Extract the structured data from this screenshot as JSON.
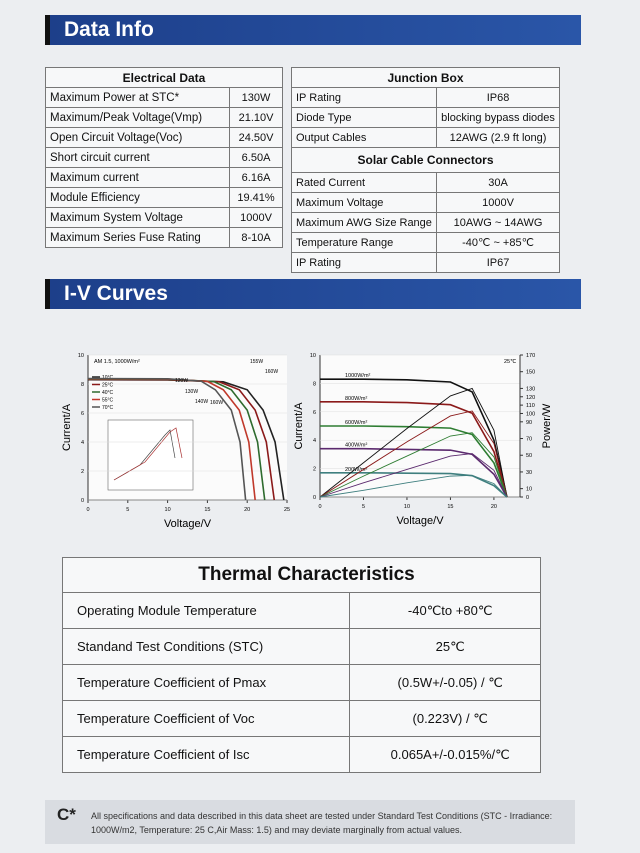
{
  "data_info": {
    "title": "Data Info",
    "electrical": {
      "title": "Electrical Data",
      "rows": [
        [
          "Maximum Power at STC*",
          "130W"
        ],
        [
          "Maximum/Peak Voltage(Vmp)",
          "21.10V"
        ],
        [
          "Open Circuit Voltage(Voc)",
          "24.50V"
        ],
        [
          "Short circuit current",
          "6.50A"
        ],
        [
          "Maximum current",
          "6.16A"
        ],
        [
          "Module Efficiency",
          "19.41%"
        ],
        [
          "Maximum System Voltage",
          "1000V"
        ],
        [
          "Maximum Series Fuse Rating",
          "8-10A"
        ]
      ]
    },
    "junction_box": {
      "title": "Junction Box",
      "rows": [
        [
          "IP Rating",
          "IP68"
        ],
        [
          "Diode Type",
          "blocking bypass diodes"
        ],
        [
          "Output Cables",
          "12AWG  (2.9 ft long)"
        ]
      ]
    },
    "cable_connectors": {
      "title": "Solar Cable Connectors",
      "rows": [
        [
          "Rated Current",
          "30A"
        ],
        [
          "Maximum Voltage",
          "1000V"
        ],
        [
          "Maximum AWG Size Range",
          "10AWG ~ 14AWG"
        ],
        [
          "Temperature Range",
          "-40℃ ~ +85℃"
        ],
        [
          "IP Rating",
          "IP67"
        ]
      ]
    }
  },
  "iv_curves": {
    "title": "I-V Curves",
    "charts": [
      {
        "type": "line",
        "xlabel": "Voltage/V",
        "ylabel": "Current/A",
        "annotation": "AM 1.5, 1000W/m²",
        "power_labels": [
          "155W",
          "160W",
          "120W",
          "130W",
          "140W",
          "160W"
        ],
        "xlim": [
          0,
          25
        ],
        "xticks": [
          0,
          5,
          10,
          15,
          20,
          25
        ],
        "ylim": [
          0,
          10
        ],
        "yticks": [
          0,
          2,
          4,
          6,
          8,
          10
        ],
        "series": [
          {
            "name": "10°C",
            "color": "#222222",
            "x": [
              0,
              10,
              17,
              20,
              22,
              23.5,
              24.6
            ],
            "values": [
              8.3,
              8.28,
              8.15,
              7.6,
              6.2,
              4,
              0
            ]
          },
          {
            "name": "25°C",
            "color": "#8b1a1a",
            "x": [
              0,
              10,
              16.5,
              19,
              21,
              22.4,
              23.4
            ],
            "values": [
              8.32,
              8.3,
              8.15,
              7.6,
              6.2,
              4,
              0
            ]
          },
          {
            "name": "40°C",
            "color": "#2e6b2e",
            "x": [
              0,
              10,
              15.8,
              18,
              20,
              21.3,
              22.2
            ],
            "values": [
              8.34,
              8.32,
              8.17,
              7.6,
              6.2,
              4,
              0
            ]
          },
          {
            "name": "55°C",
            "color": "#c0392b",
            "x": [
              0,
              10,
              15,
              17,
              19,
              20.2,
              21
            ],
            "values": [
              8.36,
              8.34,
              8.18,
              7.6,
              6.2,
              4,
              0
            ]
          },
          {
            "name": "70°C",
            "color": "#555555",
            "x": [
              0,
              10,
              14.2,
              16,
              18,
              19.1,
              19.8
            ],
            "values": [
              8.38,
              8.36,
              8.2,
              7.6,
              6.2,
              4,
              0
            ]
          }
        ]
      },
      {
        "type": "line",
        "xlabel": "Voltage/V",
        "ylabel": "Current/A",
        "y2label": "Power/W",
        "annotation": "25℃",
        "x": [
          0,
          5,
          10,
          15,
          17.5,
          20,
          21.5
        ],
        "xlim": [
          0,
          23
        ],
        "xticks": [
          0,
          5,
          10,
          15,
          20
        ],
        "ylim": [
          0,
          10
        ],
        "yticks": [
          0,
          2,
          4,
          6,
          8,
          10
        ],
        "y2lim": [
          0,
          170
        ],
        "y2ticks": [
          0,
          10,
          30,
          50,
          70,
          90,
          100,
          110,
          120,
          130,
          150,
          170
        ],
        "series": [
          {
            "name": "1000W/m²",
            "color": "#111111",
            "values": [
              8.3,
              8.3,
              8.25,
              8.1,
              7.4,
              4,
              0
            ]
          },
          {
            "name": "800W/m²",
            "color": "#8b1a1a",
            "values": [
              6.7,
              6.7,
              6.65,
              6.5,
              5.9,
              3.2,
              0
            ]
          },
          {
            "name": "600W/m²",
            "color": "#2e7d32",
            "values": [
              5.0,
              5.0,
              4.95,
              4.85,
              4.4,
              2.4,
              0
            ]
          },
          {
            "name": "400W/m²",
            "color": "#5b2a6e",
            "values": [
              3.4,
              3.4,
              3.35,
              3.3,
              3.0,
              1.6,
              0
            ]
          },
          {
            "name": "200W/m²",
            "color": "#3f7f7f",
            "values": [
              1.7,
              1.7,
              1.68,
              1.65,
              1.5,
              0.8,
              0
            ]
          },
          {
            "color": "#111111",
            "axis": "y2",
            "values": [
              0,
              41,
              82,
              121,
              130,
              80,
              0
            ]
          },
          {
            "color": "#8b1a1a",
            "axis": "y2",
            "values": [
              0,
              33,
              66,
              97,
              103,
              64,
              0
            ]
          },
          {
            "color": "#2e7d32",
            "axis": "y2",
            "values": [
              0,
              25,
              49,
              73,
              77,
              48,
              0
            ]
          },
          {
            "color": "#5b2a6e",
            "axis": "y2",
            "values": [
              0,
              17,
              33,
              49,
              52,
              32,
              0
            ]
          },
          {
            "color": "#3f7f7f",
            "axis": "y2",
            "values": [
              0,
              8,
              17,
              25,
              26,
              16,
              0
            ]
          }
        ]
      }
    ]
  },
  "thermal": {
    "title": "Thermal Characteristics",
    "rows": [
      [
        "Operating Module Temperature",
        "-40℃to +80℃"
      ],
      [
        "Standand Test Conditions  (STC)",
        "25℃"
      ],
      [
        "Temperature Coefficient of Pmax",
        "(0.5W+/-0.05)  / ℃"
      ],
      [
        "Temperature Coefficient of Voc",
        "(0.223V) / ℃"
      ],
      [
        "Temperature Coefficient of Isc",
        "0.065A+/-0.015%/℃"
      ]
    ]
  },
  "footer": {
    "icon": "C*",
    "text": "All specifications and data described in this data sheet are tested under Standard Test Conditions (STC - Irradiance: 1000W/m2, Temperature: 25 C,Air Mass: 1.5) and may deviate marginally from actual values."
  }
}
